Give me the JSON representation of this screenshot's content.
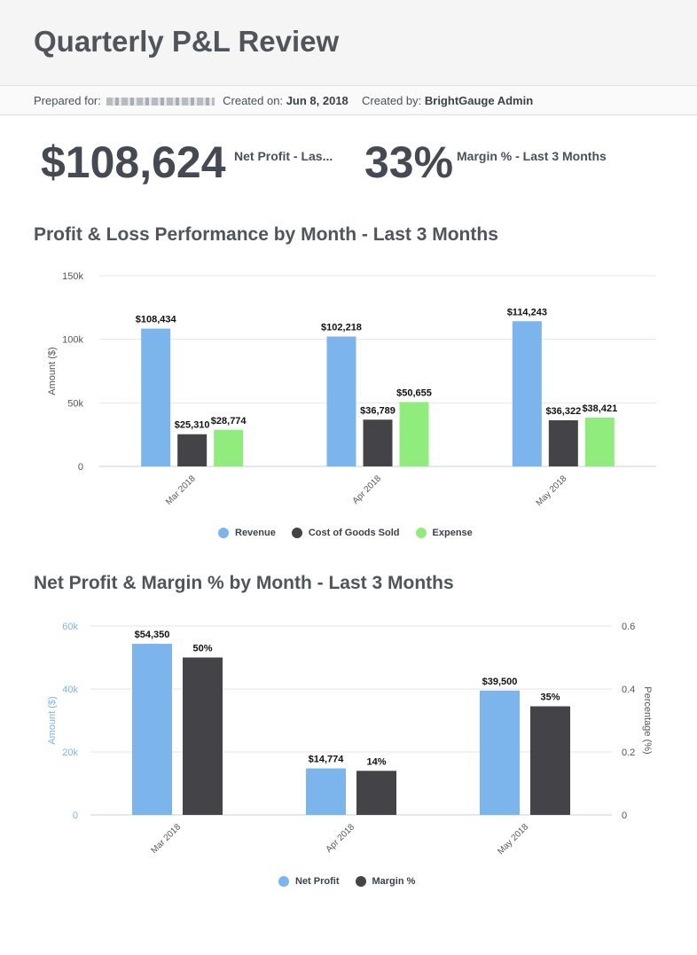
{
  "header": {
    "title": "Quarterly P&L Review",
    "prepared_for_label": "Prepared for:",
    "created_on_label": "Created on:",
    "created_on_value": "Jun 8, 2018",
    "created_by_label": "Created by:",
    "created_by_value": "BrightGauge Admin"
  },
  "kpis": [
    {
      "value": "$108,624",
      "label": "Net Profit - Las..."
    },
    {
      "value": "33%",
      "label": "Margin % - Last 3 Months"
    }
  ],
  "colors": {
    "revenue": "#7cb5ec",
    "cogs": "#434348",
    "expense": "#90ed7d",
    "net_profit": "#7cb5ec",
    "margin": "#434348",
    "left_axis_blue": "#7cb5ec"
  },
  "chart_data": [
    {
      "type": "bar",
      "title": "Profit & Loss Performance by Month - Last 3 Months",
      "ylabel": "Amount ($)",
      "ylim": [
        0,
        150000
      ],
      "yticks": [
        0,
        50000,
        100000,
        150000
      ],
      "ytick_labels": [
        "0",
        "50k",
        "100k",
        "150k"
      ],
      "categories": [
        "Mar 2018",
        "Apr 2018",
        "May 2018"
      ],
      "grid": true,
      "legend": "bottom-center",
      "series": [
        {
          "name": "Revenue",
          "color": "#7cb5ec",
          "values": [
            108434,
            102218,
            114243
          ],
          "labels": [
            "$108,434",
            "$102,218",
            "$114,243"
          ]
        },
        {
          "name": "Cost of Goods Sold",
          "color": "#434348",
          "values": [
            25310,
            36789,
            36322
          ],
          "labels": [
            "$25,310",
            "$36,789",
            "$36,322"
          ]
        },
        {
          "name": "Expense",
          "color": "#90ed7d",
          "values": [
            28774,
            50655,
            38421
          ],
          "labels": [
            "$28,774",
            "$50,655",
            "$38,421"
          ]
        }
      ]
    },
    {
      "type": "bar",
      "title": "Net Profit & Margin % by Month - Last 3 Months",
      "ylabel": "Amount ($)",
      "ylim": [
        0,
        60000
      ],
      "yticks": [
        0,
        20000,
        40000,
        60000
      ],
      "ytick_labels": [
        "0",
        "20k",
        "40k",
        "60k"
      ],
      "y2label": "Percentage (%)",
      "y2lim": [
        0,
        0.6
      ],
      "y2ticks": [
        0,
        0.2,
        0.4,
        0.6
      ],
      "y2tick_labels": [
        "0",
        "0.2",
        "0.4",
        "0.6"
      ],
      "categories": [
        "Mar 2018",
        "Apr 2018",
        "May 2018"
      ],
      "grid": true,
      "legend": "bottom-center",
      "series": [
        {
          "name": "Net Profit",
          "axis": "left",
          "color": "#7cb5ec",
          "values": [
            54350,
            14774,
            39500
          ],
          "labels": [
            "$54,350",
            "$14,774",
            "$39,500"
          ]
        },
        {
          "name": "Margin %",
          "axis": "right",
          "color": "#434348",
          "values": [
            0.5,
            0.14,
            0.345
          ],
          "labels": [
            "50%",
            "14%",
            "35%"
          ]
        }
      ]
    }
  ]
}
